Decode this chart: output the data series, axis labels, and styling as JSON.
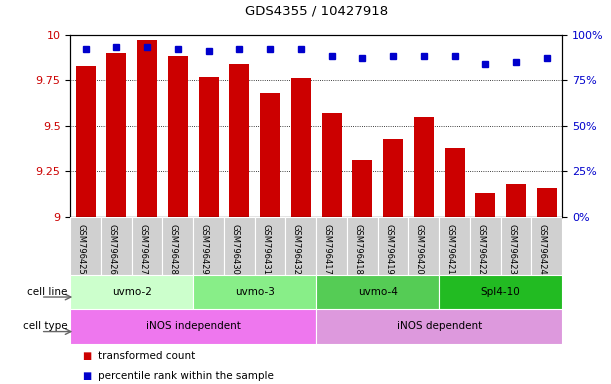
{
  "title": "GDS4355 / 10427918",
  "samples": [
    "GSM796425",
    "GSM796426",
    "GSM796427",
    "GSM796428",
    "GSM796429",
    "GSM796430",
    "GSM796431",
    "GSM796432",
    "GSM796417",
    "GSM796418",
    "GSM796419",
    "GSM796420",
    "GSM796421",
    "GSM796422",
    "GSM796423",
    "GSM796424"
  ],
  "transformed_counts": [
    9.83,
    9.9,
    9.97,
    9.88,
    9.77,
    9.84,
    9.68,
    9.76,
    9.57,
    9.31,
    9.43,
    9.55,
    9.38,
    9.13,
    9.18,
    9.16
  ],
  "percentile_ranks": [
    92,
    93,
    93,
    92,
    91,
    92,
    92,
    92,
    88,
    87,
    88,
    88,
    88,
    84,
    85,
    87
  ],
  "ylim_left": [
    9.0,
    10.0
  ],
  "ylim_right": [
    0,
    100
  ],
  "yticks_left": [
    9.0,
    9.25,
    9.5,
    9.75,
    10.0
  ],
  "ytick_labels_left": [
    "9",
    "9.25",
    "9.5",
    "9.75",
    "10"
  ],
  "yticks_right": [
    0,
    25,
    50,
    75,
    100
  ],
  "ytick_labels_right": [
    "0%",
    "25%",
    "50%",
    "75%",
    "100%"
  ],
  "bar_color": "#cc0000",
  "dot_color": "#0000cc",
  "bar_bottom": 9.0,
  "cell_lines": [
    {
      "label": "uvmo-2",
      "start": 0,
      "end": 3,
      "color": "#ccffcc"
    },
    {
      "label": "uvmo-3",
      "start": 4,
      "end": 7,
      "color": "#88ee88"
    },
    {
      "label": "uvmo-4",
      "start": 8,
      "end": 11,
      "color": "#55cc55"
    },
    {
      "label": "Spl4-10",
      "start": 12,
      "end": 15,
      "color": "#22bb22"
    }
  ],
  "cell_types": [
    {
      "label": "iNOS independent",
      "start": 0,
      "end": 7,
      "color": "#ee77ee"
    },
    {
      "label": "iNOS dependent",
      "start": 8,
      "end": 15,
      "color": "#dd99dd"
    }
  ],
  "sample_box_color": "#d0d0d0",
  "legend_items": [
    {
      "label": "transformed count",
      "color": "#cc0000"
    },
    {
      "label": "percentile rank within the sample",
      "color": "#0000cc"
    }
  ],
  "left_label_color": "#888888",
  "arrow_color": "#888888"
}
